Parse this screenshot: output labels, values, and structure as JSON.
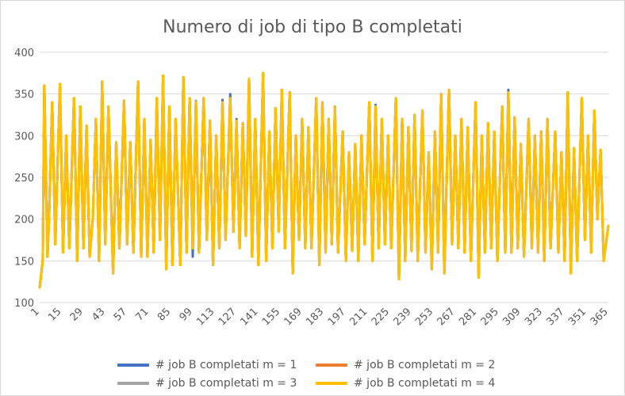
{
  "chart_data": {
    "type": "line",
    "title": "Numero di job di tipo B completati",
    "xlabel": "",
    "ylabel": "",
    "xlim": [
      1,
      365
    ],
    "ylim": [
      100,
      400
    ],
    "y_ticks": [
      100,
      150,
      200,
      250,
      300,
      350,
      400
    ],
    "x_ticks": [
      "1",
      "15",
      "29",
      "43",
      "57",
      "71",
      "85",
      "99",
      "113",
      "127",
      "141",
      "155",
      "169",
      "183",
      "197",
      "211",
      "225",
      "239",
      "253",
      "267",
      "281",
      "295",
      "309",
      "323",
      "337",
      "351",
      "365"
    ],
    "grid": "horizontal",
    "legend_position": "bottom",
    "peaks": [
      [
        1,
        118
      ],
      [
        3,
        150
      ],
      [
        4,
        360
      ],
      [
        6,
        155
      ],
      [
        7,
        200
      ],
      [
        9,
        340
      ],
      [
        11,
        170
      ],
      [
        14,
        362
      ],
      [
        16,
        160
      ],
      [
        18,
        300
      ],
      [
        20,
        165
      ],
      [
        23,
        345
      ],
      [
        25,
        150
      ],
      [
        27,
        335
      ],
      [
        29,
        165
      ],
      [
        31,
        312
      ],
      [
        33,
        155
      ],
      [
        35,
        200
      ],
      [
        37,
        320
      ],
      [
        39,
        150
      ],
      [
        41,
        365
      ],
      [
        43,
        170
      ],
      [
        45,
        335
      ],
      [
        48,
        135
      ],
      [
        50,
        292
      ],
      [
        52,
        165
      ],
      [
        55,
        342
      ],
      [
        57,
        170
      ],
      [
        59,
        292
      ],
      [
        61,
        160
      ],
      [
        64,
        365
      ],
      [
        66,
        155
      ],
      [
        68,
        320
      ],
      [
        70,
        155
      ],
      [
        72,
        295
      ],
      [
        74,
        160
      ],
      [
        76,
        345
      ],
      [
        78,
        175
      ],
      [
        80,
        372
      ],
      [
        82,
        140
      ],
      [
        84,
        335
      ],
      [
        86,
        145
      ],
      [
        88,
        320
      ],
      [
        91,
        145
      ],
      [
        93,
        370
      ],
      [
        95,
        160
      ],
      [
        97,
        345
      ],
      [
        99,
        165
      ],
      [
        101,
        340
      ],
      [
        103,
        160
      ],
      [
        106,
        345
      ],
      [
        108,
        175
      ],
      [
        110,
        318
      ],
      [
        112,
        145
      ],
      [
        114,
        300
      ],
      [
        116,
        165
      ],
      [
        118,
        340
      ],
      [
        120,
        175
      ],
      [
        123,
        345
      ],
      [
        125,
        185
      ],
      [
        127,
        318
      ],
      [
        129,
        165
      ],
      [
        131,
        315
      ],
      [
        133,
        180
      ],
      [
        135,
        368
      ],
      [
        137,
        155
      ],
      [
        139,
        320
      ],
      [
        141,
        145
      ],
      [
        144,
        375
      ],
      [
        146,
        150
      ],
      [
        148,
        305
      ],
      [
        150,
        165
      ],
      [
        152,
        333
      ],
      [
        154,
        185
      ],
      [
        156,
        355
      ],
      [
        158,
        165
      ],
      [
        161,
        352
      ],
      [
        163,
        135
      ],
      [
        165,
        300
      ],
      [
        167,
        175
      ],
      [
        169,
        320
      ],
      [
        171,
        165
      ],
      [
        173,
        310
      ],
      [
        175,
        165
      ],
      [
        178,
        345
      ],
      [
        180,
        145
      ],
      [
        182,
        340
      ],
      [
        184,
        160
      ],
      [
        186,
        320
      ],
      [
        188,
        170
      ],
      [
        190,
        335
      ],
      [
        192,
        160
      ],
      [
        195,
        305
      ],
      [
        197,
        150
      ],
      [
        199,
        280
      ],
      [
        201,
        162
      ],
      [
        203,
        290
      ],
      [
        205,
        150
      ],
      [
        207,
        300
      ],
      [
        209,
        170
      ],
      [
        212,
        340
      ],
      [
        214,
        150
      ],
      [
        216,
        335
      ],
      [
        218,
        165
      ],
      [
        220,
        320
      ],
      [
        222,
        170
      ],
      [
        224,
        300
      ],
      [
        226,
        165
      ],
      [
        229,
        345
      ],
      [
        231,
        128
      ],
      [
        233,
        320
      ],
      [
        235,
        150
      ],
      [
        237,
        310
      ],
      [
        239,
        162
      ],
      [
        241,
        325
      ],
      [
        243,
        150
      ],
      [
        246,
        330
      ],
      [
        248,
        160
      ],
      [
        250,
        280
      ],
      [
        252,
        140
      ],
      [
        254,
        305
      ],
      [
        256,
        160
      ],
      [
        258,
        350
      ],
      [
        260,
        135
      ],
      [
        263,
        355
      ],
      [
        265,
        170
      ],
      [
        267,
        300
      ],
      [
        269,
        165
      ],
      [
        271,
        320
      ],
      [
        273,
        160
      ],
      [
        275,
        310
      ],
      [
        277,
        150
      ],
      [
        280,
        340
      ],
      [
        282,
        130
      ],
      [
        284,
        300
      ],
      [
        286,
        160
      ],
      [
        288,
        315
      ],
      [
        290,
        165
      ],
      [
        292,
        305
      ],
      [
        294,
        150
      ],
      [
        297,
        335
      ],
      [
        299,
        160
      ],
      [
        301,
        352
      ],
      [
        303,
        160
      ],
      [
        305,
        322
      ],
      [
        307,
        165
      ],
      [
        309,
        290
      ],
      [
        311,
        155
      ],
      [
        314,
        320
      ],
      [
        316,
        165
      ],
      [
        318,
        300
      ],
      [
        320,
        160
      ],
      [
        322,
        305
      ],
      [
        324,
        150
      ],
      [
        326,
        320
      ],
      [
        328,
        165
      ],
      [
        331,
        305
      ],
      [
        333,
        160
      ],
      [
        335,
        280
      ],
      [
        337,
        150
      ],
      [
        339,
        352
      ],
      [
        341,
        135
      ],
      [
        343,
        285
      ],
      [
        345,
        150
      ],
      [
        348,
        345
      ],
      [
        350,
        175
      ],
      [
        352,
        300
      ],
      [
        354,
        160
      ],
      [
        356,
        330
      ],
      [
        358,
        200
      ],
      [
        360,
        283
      ],
      [
        362,
        150
      ],
      [
        365,
        192
      ]
    ],
    "series": [
      {
        "name": "# job B completati m = 1",
        "color": "#4472c4",
        "peak_offsets": {
          "99": -10,
          "123": 5,
          "118": 3,
          "301": 3,
          "127": 2,
          "260": 5,
          "216": 2
        }
      },
      {
        "name": "# job B completati m = 2",
        "color": "#ed7d31",
        "peak_offsets": {}
      },
      {
        "name": "# job B completati m = 3",
        "color": "#a5a5a5",
        "peak_offsets": {
          "101": 2
        }
      },
      {
        "name": "# job B completati m = 4",
        "color": "#ffc000",
        "peak_offsets": {}
      }
    ]
  }
}
